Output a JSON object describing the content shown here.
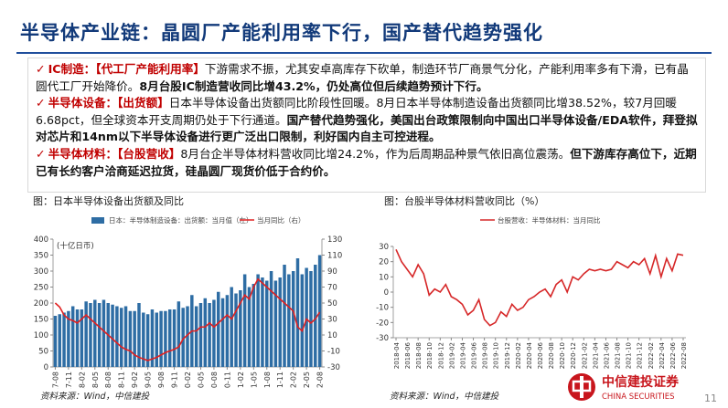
{
  "header": {
    "title": "半导体产业链：晶圆厂产能利用率下行，国产替代趋势强化"
  },
  "bullets": [
    {
      "label": "IC制造：",
      "tag": "【代工厂产能利用率】",
      "text": "下游需求不振，尤其安卓高库存下砍单，制造环节厂商景气分化，产能利用率多有下滑，已有晶圆代工厂开始降价。",
      "bold": "8月台股IC制造营收同比增43.2%，仍处高位但后续趋势预计下行。"
    },
    {
      "label": "半导体设备：",
      "tag": "【出货额】",
      "text": "日本半导体设备出货额同比阶段性回暖。8月日本半导体制造设备出货额同比增38.52%，较7月回暖6.68pct，但全球资本开支周期仍处于下行通道。",
      "bold": "国产替代趋势强化，美国出台政策限制向中国出口半导体设备/EDA软件，拜登拟对芯片和14nm以下半导体设备进行更广泛出口限制，利好国内自主可控进程。"
    },
    {
      "label": "半导体材料：",
      "tag": "【台股营收】",
      "text": "8月台企半导体材料营收同比增24.2%，作为后周期品种景气依旧高位震荡。",
      "bold": "但下游库存高位下，近期已有长约客户洽商延迟拉货，硅晶圆厂现货价低于合约价。"
    }
  ],
  "chart_data": [
    {
      "type": "bar",
      "title": "图：日本半导体设备出货额及同比",
      "y_label": "(十亿日币)",
      "source": "资料来源：Wind，中信建投",
      "categories": [
        "17-08",
        null,
        null,
        "17-11",
        null,
        null,
        "18-02",
        null,
        null,
        "18-05",
        null,
        null,
        "18-08",
        null,
        null,
        "18-11",
        null,
        null,
        "19-02",
        null,
        null,
        "19-05",
        null,
        null,
        "19-08",
        null,
        null,
        "19-11",
        null,
        null,
        "20-02",
        null,
        null,
        "20-05",
        null,
        null,
        "20-08",
        null,
        null,
        "20-11",
        null,
        null,
        "21-02",
        null,
        null,
        "21-05",
        null,
        null,
        "21-08",
        null,
        null,
        "21-11",
        null,
        null,
        "22-02",
        null,
        null,
        "22-05",
        null,
        null,
        "22-08"
      ],
      "series": [
        {
          "name": "日本：半导体制造设备：出货额：当月值（左）",
          "type": "bar",
          "color": "#2e6da4",
          "values": [
            160,
            165,
            170,
            175,
            190,
            180,
            180,
            205,
            200,
            210,
            200,
            210,
            200,
            195,
            190,
            185,
            190,
            175,
            175,
            200,
            170,
            165,
            180,
            170,
            175,
            175,
            180,
            180,
            205,
            185,
            190,
            225,
            190,
            200,
            215,
            200,
            210,
            235,
            215,
            225,
            250,
            230,
            240,
            290,
            250,
            260,
            290,
            280,
            270,
            300,
            270,
            280,
            320,
            290,
            300,
            340,
            290,
            310,
            300,
            320,
            350
          ]
        },
        {
          "name": "当月同比（右）",
          "type": "line",
          "axis": "y2",
          "color": "#e02020",
          "values": [
            50,
            45,
            35,
            30,
            28,
            25,
            30,
            35,
            30,
            25,
            20,
            15,
            10,
            5,
            0,
            -5,
            -8,
            -10,
            -15,
            -18,
            -20,
            -22,
            -20,
            -18,
            -15,
            -12,
            -10,
            -8,
            -5,
            5,
            10,
            15,
            15,
            20,
            20,
            25,
            20,
            25,
            30,
            35,
            30,
            40,
            50,
            60,
            55,
            70,
            80,
            75,
            70,
            65,
            60,
            55,
            50,
            45,
            40,
            20,
            15,
            30,
            25,
            30,
            38.52
          ]
        }
      ],
      "ylim": [
        0,
        400
      ],
      "yticks": [
        0,
        50,
        100,
        150,
        200,
        250,
        300,
        350,
        400
      ],
      "y2lim": [
        -30,
        130
      ],
      "y2ticks": [
        -30,
        -10,
        10,
        30,
        50,
        70,
        90,
        110,
        130
      ]
    },
    {
      "type": "line",
      "title": "图：台股半导体材料营收同比（%）",
      "source": "资料来源：Wind，中信建投",
      "categories": [
        "2018-04",
        null,
        "2018-06",
        null,
        "2018-08",
        null,
        "2018-10",
        null,
        "2018-12",
        null,
        "2019-02",
        null,
        "2019-04",
        null,
        "2019-06",
        null,
        "2019-08",
        null,
        "2019-10",
        null,
        "2019-12",
        null,
        "2020-02",
        null,
        "2020-04",
        null,
        "2020-06",
        null,
        "2020-08",
        null,
        "2020-10",
        null,
        "2020-12",
        null,
        "2021-02",
        null,
        "2021-04",
        null,
        "2021-06",
        null,
        "2021-08",
        null,
        "2021-10",
        null,
        "2021-12",
        null,
        "2022-02",
        null,
        "2022-04",
        null,
        "2022-06",
        null,
        "2022-08"
      ],
      "series": [
        {
          "name": "台股营收：半导体材料：当月同比",
          "color": "#d62728",
          "values": [
            28,
            20,
            15,
            10,
            18,
            12,
            -2,
            2,
            0,
            5,
            -3,
            -5,
            -8,
            -15,
            -12,
            -5,
            -18,
            -22,
            -20,
            -13,
            -16,
            -8,
            -12,
            -10,
            -5,
            -3,
            0,
            2,
            -3,
            5,
            8,
            0,
            10,
            8,
            12,
            15,
            14,
            15,
            14,
            15,
            20,
            18,
            16,
            20,
            18,
            22,
            12,
            24,
            10,
            22,
            14,
            25,
            24.2
          ]
        }
      ],
      "ylim": [
        -30,
        30
      ],
      "yticks": [
        -30,
        -20,
        -10,
        0,
        10,
        20,
        30
      ]
    }
  ],
  "logo": {
    "name": "中信建投证券",
    "english": "CHINA SECURITIES"
  },
  "page_number": "11"
}
